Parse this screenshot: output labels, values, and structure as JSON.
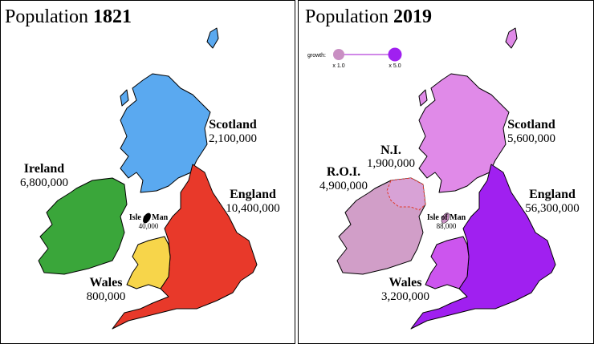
{
  "panels": [
    {
      "title": "Population",
      "year": "1821",
      "regions": {
        "scotland": {
          "name": "Scotland",
          "population": "2,100,000"
        },
        "england": {
          "name": "England",
          "population": "10,400,000"
        },
        "ireland": {
          "name": "Ireland",
          "population": "6,800,000"
        },
        "wales": {
          "name": "Wales",
          "population": "800,000"
        },
        "isle_of_man": {
          "name": "Isle of Man",
          "population": "40,000"
        }
      }
    },
    {
      "title": "Population",
      "year": "2019",
      "legend": {
        "label": "growth:",
        "min": "x 1.0",
        "max": "x 5.0"
      },
      "regions": {
        "scotland": {
          "name": "Scotland",
          "population": "5,600,000"
        },
        "england": {
          "name": "England",
          "population": "56,300,000"
        },
        "roi": {
          "name": "R.O.I.",
          "population": "4,900,000"
        },
        "ni": {
          "name": "N.I.",
          "population": "1,900,000"
        },
        "wales": {
          "name": "Wales",
          "population": "3,200,000"
        },
        "isle_of_man": {
          "name": "Isle of Man",
          "population": "88,000"
        }
      }
    }
  ]
}
